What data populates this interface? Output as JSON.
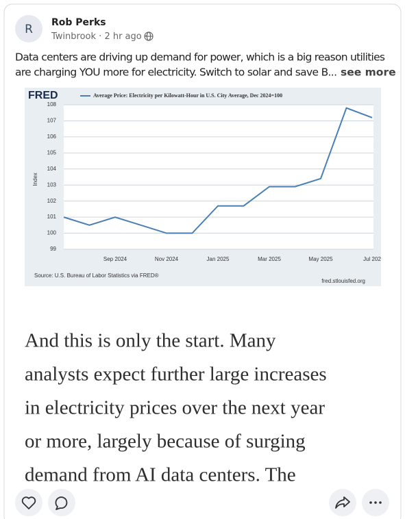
{
  "post": {
    "avatar": "R",
    "author": "Rob Perks",
    "location": "Twinbrook",
    "time": "2 hr ago",
    "text_lines": [
      "Data centers are driving up demand for power, which is a big reason utilities",
      "are charging YOU more for electricity. Switch to solar and save B..."
    ],
    "see_more": "see more"
  },
  "chart_data": {
    "type": "line",
    "logo": "FRED",
    "y_label": "Index",
    "source": "Source: U.S. Bureau of Labor Statistics via FRED®",
    "url": "fred.stlouisfed.org",
    "categories": [
      null,
      null,
      "Sep 2024",
      null,
      "Nov 2024",
      null,
      "Jan 2025",
      null,
      "Mar 2025",
      null,
      "May 2025",
      null,
      "Jul 202"
    ],
    "series": [
      {
        "name": "Average Price: Electricity per Kilowatt-Hour in U.S. City Average, Dec 2024=100",
        "color": "#4a7fb5",
        "values": [
          101,
          100.5,
          101,
          100.5,
          100,
          100,
          101.7,
          101.7,
          102.9,
          102.9,
          103.4,
          107.8,
          107.2
        ]
      }
    ],
    "ylim": [
      99,
      108
    ],
    "yticks": [
      99,
      100,
      101,
      102,
      103,
      104,
      105,
      106,
      107,
      108
    ],
    "grid": true
  },
  "quote": {
    "lines": [
      "And this is only the start. Many",
      "analysts expect further large increases",
      "in electricity prices over the next year",
      "or more, largely because of surging",
      "demand from AI data centers. The"
    ]
  }
}
